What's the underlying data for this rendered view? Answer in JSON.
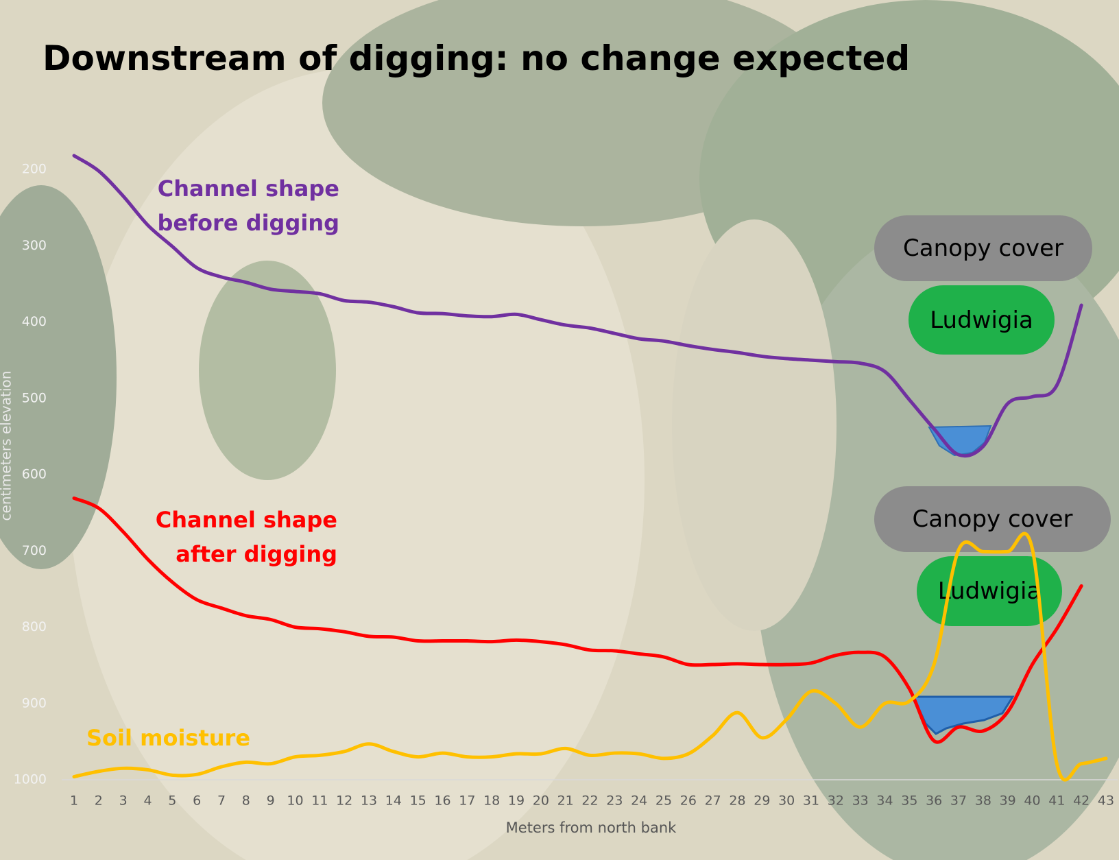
{
  "chart_data": {
    "type": "line",
    "title": "Downstream of digging: no change expected",
    "xlabel": "Meters from north bank",
    "ylabel": "centimeters elevation",
    "categories": [
      "1",
      "2",
      "3",
      "4",
      "5",
      "6",
      "7",
      "8",
      "9",
      "10",
      "11",
      "12",
      "13",
      "14",
      "15",
      "16",
      "17",
      "18",
      "19",
      "20",
      "21",
      "22",
      "23",
      "24",
      "25",
      "26",
      "27",
      "28",
      "29",
      "30",
      "31",
      "32",
      "33",
      "34",
      "35",
      "36",
      "37",
      "38",
      "39",
      "40",
      "41",
      "42",
      "43"
    ],
    "ylim": [
      200,
      1000
    ],
    "y_inverted": true,
    "yticks": [
      200,
      300,
      400,
      500,
      600,
      700,
      800,
      900,
      1000
    ],
    "series": [
      {
        "name": "Channel shape before digging",
        "color": "#7030a0",
        "values": [
          182,
          202,
          235,
          273,
          301,
          329,
          341,
          348,
          357,
          360,
          363,
          372,
          374,
          380,
          388,
          389,
          392,
          393,
          390,
          397,
          404,
          408,
          415,
          422,
          425,
          431,
          436,
          440,
          445,
          448,
          450,
          452,
          454,
          465,
          502,
          540,
          574,
          563,
          507,
          498,
          483,
          378,
          null
        ]
      },
      {
        "name": "Channel shape after digging",
        "color": "#ff0000",
        "values": [
          631,
          644,
          675,
          711,
          741,
          764,
          775,
          785,
          790,
          800,
          802,
          806,
          812,
          813,
          818,
          818,
          818,
          819,
          817,
          819,
          823,
          830,
          831,
          835,
          839,
          849,
          849,
          848,
          849,
          849,
          847,
          837,
          833,
          839,
          881,
          949,
          931,
          936,
          911,
          849,
          802,
          746,
          null
        ]
      },
      {
        "name": "Soil moisture",
        "color": "#ffc000",
        "values": [
          996,
          989,
          985,
          987,
          994,
          993,
          983,
          977,
          979,
          970,
          968,
          963,
          953,
          963,
          970,
          965,
          970,
          970,
          966,
          966,
          959,
          968,
          965,
          966,
          972,
          966,
          942,
          912,
          945,
          921,
          884,
          900,
          931,
          900,
          897,
          849,
          699,
          701,
          701,
          697,
          979,
          979,
          972
        ]
      }
    ],
    "annotations": [
      "Canopy cover",
      "Ludwigia",
      "Canopy cover",
      "Ludwigia"
    ]
  }
}
